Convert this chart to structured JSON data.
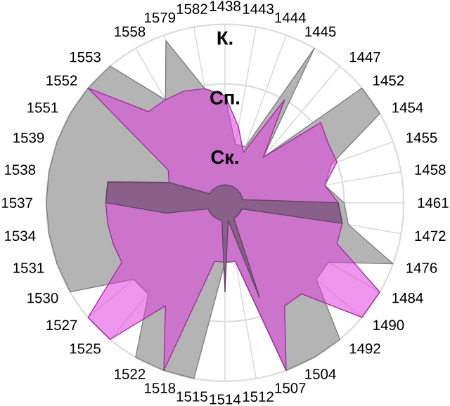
{
  "chart_data": {
    "type": "radar",
    "categories": [
      "1438",
      "1443",
      "1444",
      "1445",
      "1447",
      "1452",
      "1454",
      "1455",
      "1458",
      "1461",
      "1472",
      "1476",
      "1484",
      "1490",
      "1492",
      "1504",
      "1507",
      "1512",
      "1514",
      "1515",
      "1518",
      "1522",
      "1525",
      "1527",
      "1530",
      "1531",
      "1534",
      "1537",
      "1538",
      "1539",
      "1551",
      "1552",
      "1553",
      "1558",
      "1579",
      "1582"
    ],
    "series": [
      {
        "color": "#b4b4b4",
        "values": [
          1.8,
          1.0,
          1.0,
          3.0,
          1.0,
          3.0,
          3.0,
          1.9,
          1.7,
          2.0,
          2.1,
          3.0,
          2.0,
          2.0,
          3.0,
          3.0,
          3.0,
          1.0,
          1.0,
          3.0,
          3.0,
          3.0,
          2.0,
          2.0,
          3.0,
          3.0,
          3.0,
          3.0,
          3.0,
          3.0,
          3.0,
          3.0,
          3.0,
          2.0,
          2.9,
          1.95
        ]
      },
      {
        "color": "#e040e0",
        "values": [
          1.8,
          1.3,
          0.9,
          2.0,
          1.0,
          2.1,
          2.0,
          2.0,
          1.7,
          1.9,
          2.0,
          2.0,
          3.0,
          3.0,
          2.0,
          2.0,
          3.0,
          1.0,
          1.0,
          1.0,
          3.0,
          2.0,
          3.0,
          3.0,
          2.0,
          2.0,
          2.0,
          2.0,
          2.0,
          1.0,
          1.1,
          3.0,
          2.0,
          2.0,
          2.0,
          1.95
        ]
      },
      {
        "color": "#8a5f8a",
        "values": [
          0.3,
          0.3,
          0.3,
          0.3,
          0.3,
          0.3,
          0.3,
          0.3,
          0.3,
          1.9,
          2.0,
          0.3,
          0.3,
          0.3,
          0.3,
          0.3,
          1.7,
          0.3,
          1.5,
          0.3,
          0.3,
          0.3,
          0.3,
          0.3,
          0.3,
          0.3,
          1.0,
          2.0,
          2.0,
          1.0,
          0.3,
          0.3,
          0.3,
          0.3,
          0.3,
          0.3
        ]
      }
    ],
    "ylim": [
      0,
      3
    ],
    "yticks": [
      {
        "value": 1,
        "label": "Ск."
      },
      {
        "value": 2,
        "label": "Сп."
      },
      {
        "value": 3,
        "label": "К."
      }
    ],
    "grid": true
  }
}
